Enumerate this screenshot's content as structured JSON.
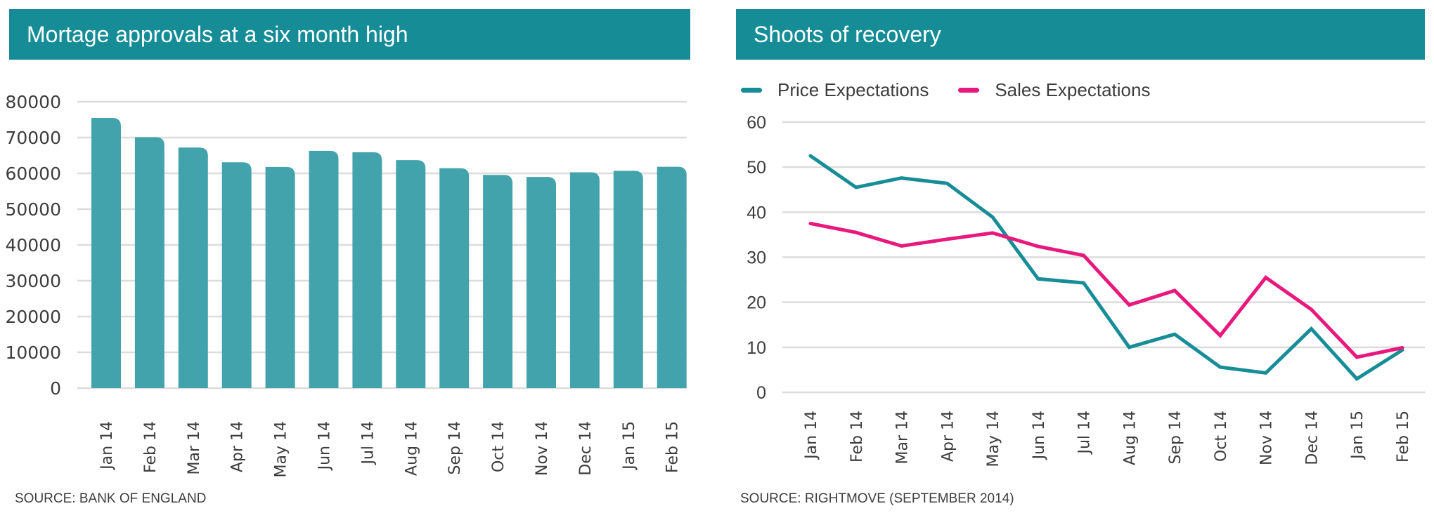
{
  "left_panel": {
    "title": "Mortage approvals at a six month high",
    "source": "SOURCE: BANK OF ENGLAND"
  },
  "right_panel": {
    "title": "Shoots of recovery",
    "source": "SOURCE: RIGHTMOVE (SEPTEMBER 2014)"
  },
  "colors": {
    "header_bg": "#168c96",
    "bar": "#43a3ac",
    "price_line": "#178d97",
    "sales_line": "#e8197d",
    "grid": "#dcdcdc"
  },
  "chart_data": [
    {
      "type": "bar",
      "title": "Mortage approvals at a six month high",
      "xlabel": "",
      "ylabel": "",
      "categories": [
        "Jan 14",
        "Feb 14",
        "Mar 14",
        "Apr 14",
        "May 14",
        "Jun 14",
        "Jul 14",
        "Aug 14",
        "Sep 14",
        "Oct 14",
        "Nov 14",
        "Dec 14",
        "Jan 15",
        "Feb 15"
      ],
      "values": [
        75500,
        70100,
        67200,
        63100,
        61800,
        66300,
        65900,
        63700,
        61450,
        59550,
        59000,
        60300,
        60700,
        61850
      ],
      "ylim": [
        0,
        80000
      ],
      "yticks": [
        0,
        10000,
        20000,
        30000,
        40000,
        50000,
        60000,
        70000,
        80000
      ],
      "ytick_labels": [
        "0",
        "10000",
        "20000",
        "30000",
        "40000",
        "50000",
        "60000",
        "70000",
        "80000"
      ],
      "grid": true,
      "legend": "none",
      "source": "SOURCE: BANK OF ENGLAND"
    },
    {
      "type": "line",
      "title": "Shoots of recovery",
      "xlabel": "",
      "ylabel": "",
      "categories": [
        "Jan 14",
        "Feb 14",
        "Mar 14",
        "Apr 14",
        "May 14",
        "Jun 14",
        "Jul 14",
        "Aug 14",
        "Sep 14",
        "Oct 14",
        "Nov 14",
        "Dec 14",
        "Jan 15",
        "Feb 15"
      ],
      "series": [
        {
          "name": "Price Expectations",
          "color": "#178d97",
          "values": [
            52.5,
            45.5,
            47.6,
            46.4,
            38.9,
            25.2,
            24.3,
            10.0,
            12.9,
            5.6,
            4.3,
            14.1,
            3.0,
            9.4
          ]
        },
        {
          "name": "Sales Expectations",
          "color": "#e8197d",
          "values": [
            37.5,
            35.5,
            32.5,
            34.0,
            35.4,
            32.4,
            30.4,
            19.4,
            22.6,
            12.6,
            25.5,
            18.4,
            7.8,
            9.9
          ]
        }
      ],
      "ylim": [
        0,
        60
      ],
      "yticks": [
        0,
        10,
        20,
        30,
        40,
        50,
        60
      ],
      "ytick_labels": [
        "0",
        "10",
        "20",
        "30",
        "40",
        "50",
        "60"
      ],
      "grid": true,
      "legend": "top-left",
      "source": "SOURCE: RIGHTMOVE (SEPTEMBER 2014)"
    }
  ]
}
